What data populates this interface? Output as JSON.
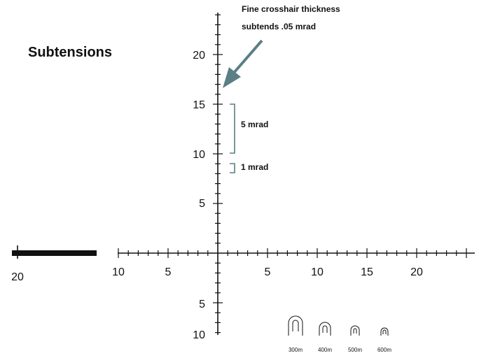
{
  "title": "Subtensions",
  "annotation": {
    "line1": "Fine crosshair thickness",
    "line2": "subtends .05 mrad"
  },
  "brackets": [
    {
      "label": "5 mrad",
      "from": 10,
      "to": 15
    },
    {
      "label": "1 mrad",
      "from": 8,
      "to": 9
    }
  ],
  "scale": {
    "vertical_up": [
      "20",
      "15",
      "10",
      "5"
    ],
    "vertical_down": [
      "5",
      "10"
    ],
    "horizontal_left": [
      "10",
      "5"
    ],
    "horizontal_right": [
      "5",
      "10",
      "15",
      "20"
    ],
    "left_post": "20"
  },
  "range_markers": [
    "300m",
    "400m",
    "500m",
    "600m"
  ],
  "colors": {
    "reticle": "#111111",
    "accent": "#5a7f86"
  }
}
